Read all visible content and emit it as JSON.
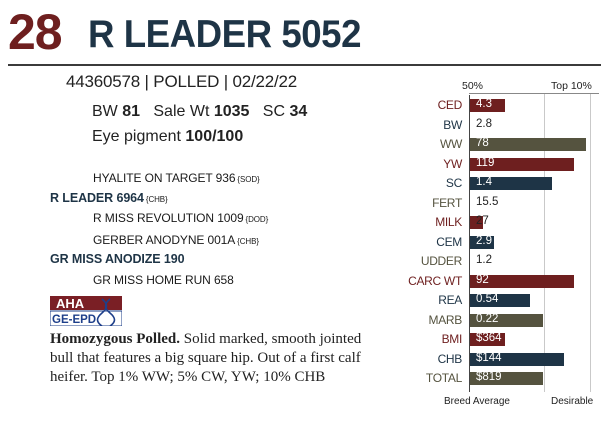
{
  "header": {
    "lot": "28",
    "name": "R LEADER 5052"
  },
  "registration": {
    "line": "44360578 | POLLED | 02/22/22"
  },
  "stats": {
    "bw_label": "BW",
    "bw_value": "81",
    "sale_label": "Sale Wt",
    "sale_value": "1035",
    "sc_label": "SC",
    "sc_value": "34",
    "eye_label": "Eye pigment",
    "eye_value": "100/100"
  },
  "pedigree": {
    "sire_sire": "HYALITE ON TARGET 936",
    "sire_sire_tag": "{SOD}",
    "sire": "R LEADER 6964",
    "sire_tag": "{CHB}",
    "sire_dam": "R MISS REVOLUTION 1009",
    "sire_dam_tag": "{DOD}",
    "dam_sire": "GERBER ANODYNE 001A",
    "dam_sire_tag": "{CHB}",
    "dam": "GR MISS ANODIZE 190",
    "dam_dam": "GR MISS HOME RUN 658"
  },
  "logo": {
    "top": "AHA",
    "bottom": "GE-EPD"
  },
  "description": {
    "lead": "Homozygous Polled.",
    "body": " Solid marked, smooth jointed bull that features a big square hip. Out of a first calf heifer. Top 1% WW; 5% CW, YW; 10% CHB"
  },
  "chart_labels": {
    "head_left": "50%",
    "head_right": "Top 10%",
    "foot_left": "Breed Average",
    "foot_right": "Desirable"
  },
  "chart_data": {
    "type": "bar",
    "orientation": "horizontal",
    "scale": "relative fill 0-1 of bar area",
    "colors": {
      "red": "#6e1f1f",
      "blue": "#1e3446",
      "olive": "#55533f"
    },
    "rows": [
      {
        "label": "CED",
        "value": "4.3",
        "fill": 0.29,
        "color": "red"
      },
      {
        "label": "BW",
        "value": "2.8",
        "fill": 0,
        "color": "blue"
      },
      {
        "label": "WW",
        "value": "78",
        "fill": 0.95,
        "color": "olive"
      },
      {
        "label": "YW",
        "value": "119",
        "fill": 0.85,
        "color": "red"
      },
      {
        "label": "SC",
        "value": "1.4",
        "fill": 0.67,
        "color": "blue"
      },
      {
        "label": "FERT",
        "value": "15.5",
        "fill": 0,
        "color": "olive"
      },
      {
        "label": "MILK",
        "value": "27",
        "fill": 0.11,
        "color": "red"
      },
      {
        "label": "CEM",
        "value": "2.9",
        "fill": 0.2,
        "color": "blue"
      },
      {
        "label": "UDDER",
        "value": "1.2",
        "fill": 0,
        "color": "olive"
      },
      {
        "label": "CARC WT",
        "value": "92",
        "fill": 0.85,
        "color": "red"
      },
      {
        "label": "REA",
        "value": "0.54",
        "fill": 0.49,
        "color": "blue"
      },
      {
        "label": "MARB",
        "value": "0.22",
        "fill": 0.6,
        "color": "olive"
      },
      {
        "label": "BMI",
        "value": "$364",
        "fill": 0.29,
        "color": "red"
      },
      {
        "label": "CHB",
        "value": "$144",
        "fill": 0.77,
        "color": "blue"
      },
      {
        "label": "TOTAL",
        "value": "$819",
        "fill": 0.6,
        "color": "olive"
      }
    ]
  }
}
